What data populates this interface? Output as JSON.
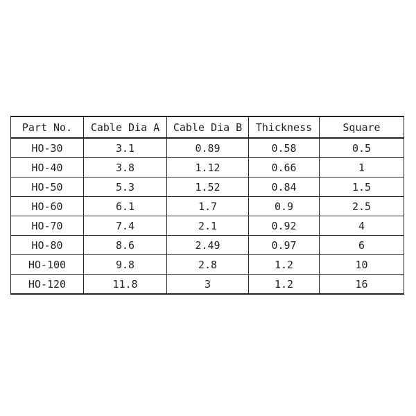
{
  "table": {
    "header": [
      "Part No.",
      "Cable Dia A",
      "Cable Dia B",
      "Thickness",
      "Square"
    ],
    "rows": [
      [
        "HO-30",
        "3.1",
        "0.89",
        "0.58",
        "0.5"
      ],
      [
        "HO-40",
        "3.8",
        "1.12",
        "0.66",
        "1"
      ],
      [
        "HO-50",
        "5.3",
        "1.52",
        "0.84",
        "1.5"
      ],
      [
        "HO-60",
        "6.1",
        "1.7",
        "0.9",
        "2.5"
      ],
      [
        "HO-70",
        "7.4",
        "2.1",
        "0.92",
        "4"
      ],
      [
        "HO-80",
        "8.6",
        "2.49",
        "0.97",
        "6"
      ],
      [
        "HO-100",
        "9.8",
        "2.8",
        "1.2",
        "10"
      ],
      [
        "HO-120",
        "11.8",
        "3",
        "1.2",
        "16"
      ]
    ]
  }
}
